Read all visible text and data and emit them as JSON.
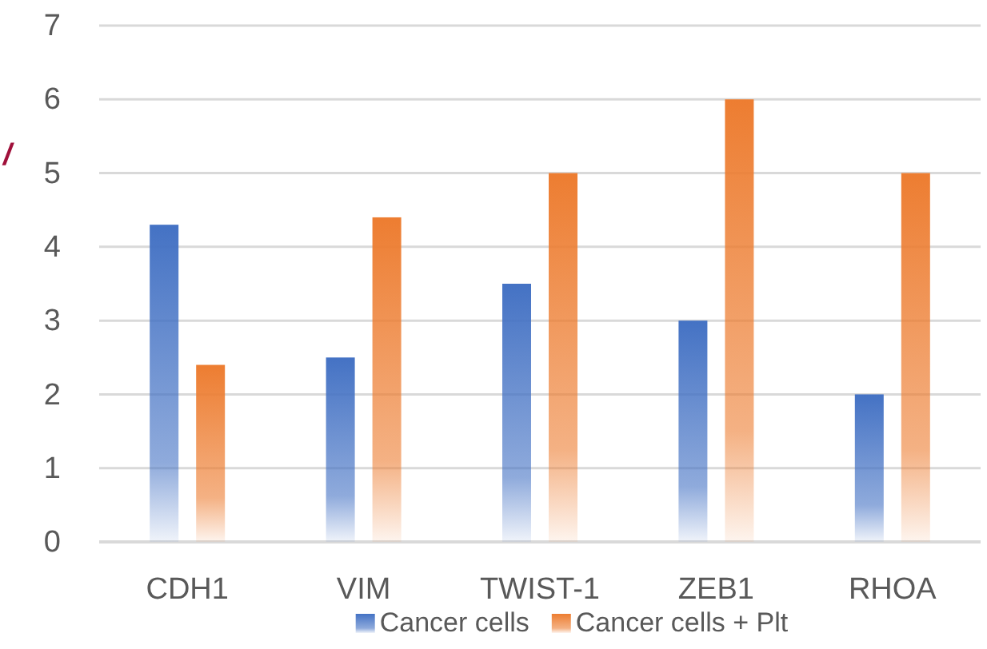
{
  "chart_data": {
    "type": "bar",
    "categories": [
      "CDH1",
      "VIM",
      "TWIST-1",
      "ZEB1",
      "RHOA"
    ],
    "series": [
      {
        "name": "Cancer cells",
        "color": "#4472c4",
        "values": [
          4.3,
          2.5,
          3.5,
          3,
          2
        ]
      },
      {
        "name": "Cancer cells + Plt",
        "color": "#ed7d31",
        "values": [
          2.4,
          4.4,
          5,
          6,
          5
        ]
      }
    ],
    "ylim": [
      0,
      7
    ],
    "yticks": [
      0,
      1,
      2,
      3,
      4,
      5,
      6,
      7
    ],
    "grid": "y",
    "legend": "bottom",
    "annotations": [
      "/"
    ]
  }
}
